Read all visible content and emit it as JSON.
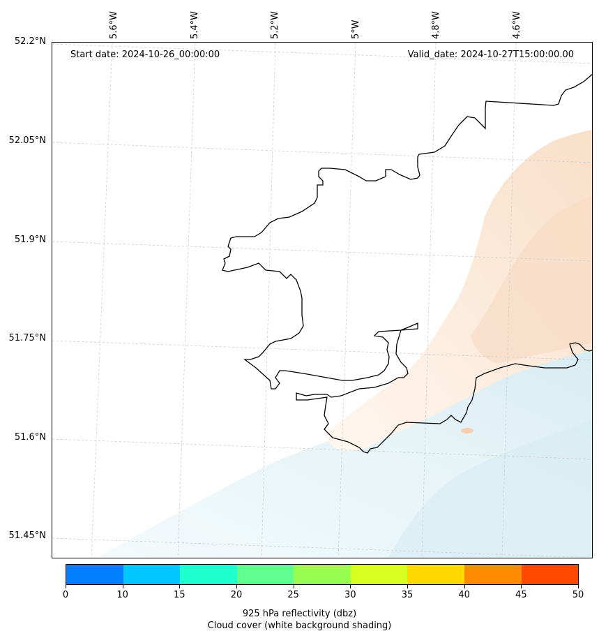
{
  "map": {
    "start_date": "Start date: 2024-10-26_00:00:00",
    "valid_date": "Valid_date: 2024-10-27T15:00:00.00",
    "lat_labels": [
      "52.2°N",
      "52.05°N",
      "51.9°N",
      "51.75°N",
      "51.6°N",
      "51.45°N"
    ],
    "lon_labels": [
      "5.6°W",
      "5.4°W",
      "5.2°W",
      "5°W",
      "4.8°W",
      "4.6°W"
    ],
    "colors": {
      "coastline": "#000000",
      "gridline": "#cccccc",
      "warm_shade": "#fbe3cf",
      "cool_shade": "#d9eef4"
    }
  },
  "colorbar": {
    "ticks": [
      "0",
      "10",
      "15",
      "20",
      "25",
      "30",
      "35",
      "40",
      "45",
      "50"
    ],
    "colors": [
      "#0080ff",
      "#00c8ff",
      "#20ffd0",
      "#60ff90",
      "#98ff50",
      "#d8ff20",
      "#ffd800",
      "#ff8c00",
      "#ff4800"
    ],
    "caption_line1": "925 hPa reflectivity (dbz)",
    "caption_line2": "Cloud cover (white background shading)"
  }
}
